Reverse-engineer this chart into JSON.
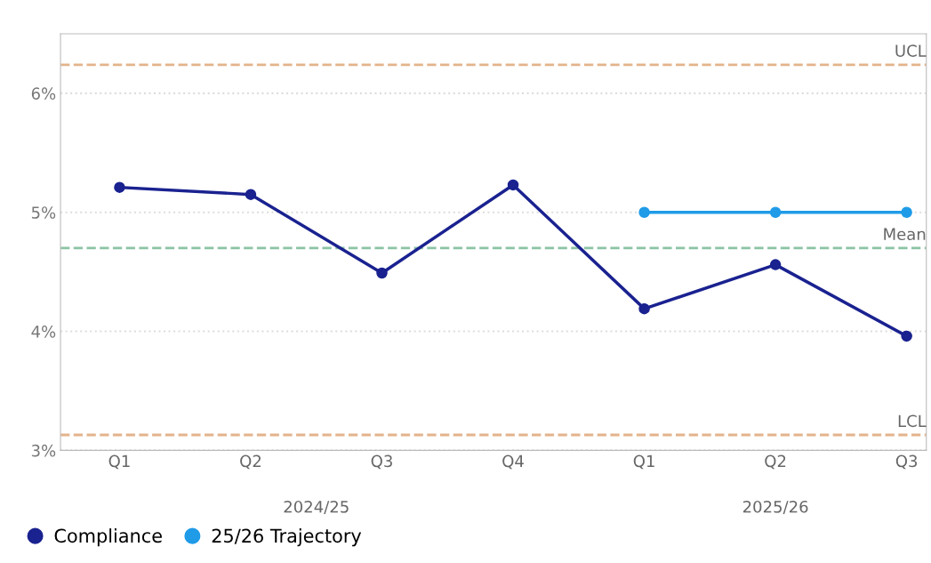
{
  "chart_data": {
    "type": "line",
    "categories": [
      "Q1",
      "Q2",
      "Q3",
      "Q4",
      "Q1",
      "Q2",
      "Q3"
    ],
    "series": [
      {
        "name": "Compliance",
        "color": "#1a2290",
        "values": [
          5.21,
          5.15,
          4.49,
          5.23,
          4.19,
          4.56,
          3.96
        ]
      },
      {
        "name": "25/26 Trajectory",
        "color": "#1f9be8",
        "values": [
          null,
          null,
          null,
          null,
          5.0,
          5.0,
          5.0
        ]
      }
    ],
    "ylim": [
      3,
      6.5
    ],
    "yticks": [
      {
        "value": 3,
        "label": "3%"
      },
      {
        "value": 4,
        "label": "4%"
      },
      {
        "value": 5,
        "label": "5%"
      },
      {
        "value": 6,
        "label": "6%"
      }
    ],
    "ref_lines": [
      {
        "axis": "y",
        "value": 6.24,
        "label": "UCL",
        "color": "#e3b48c",
        "line_style": "dashed"
      },
      {
        "axis": "y",
        "value": 4.7,
        "label": "Mean",
        "color": "#8cc4a4",
        "line_style": "dashed"
      },
      {
        "axis": "y",
        "value": 3.13,
        "label": "LCL",
        "color": "#e3b48c",
        "line_style": "dashed"
      }
    ],
    "annotations": [
      "2024/25",
      "2025/26"
    ],
    "grid": "y",
    "legend": "bottom left",
    "marker": "circle",
    "line_style": "solid"
  }
}
